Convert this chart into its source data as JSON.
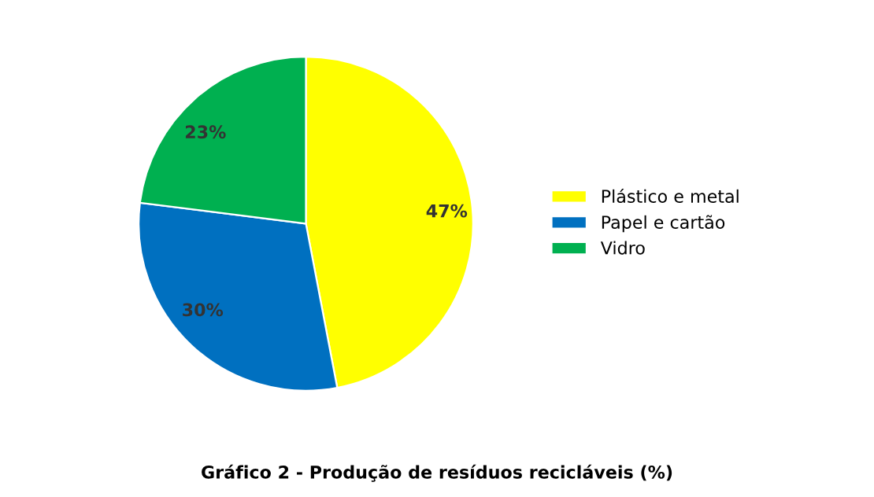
{
  "chart_data": {
    "type": "pie",
    "title": "Gráfico 2 - Produção de resíduos recicláveis (%)",
    "categories": [
      "Plástico e metal",
      "Papel e cartão",
      "Vidro"
    ],
    "values": [
      47,
      30,
      23
    ],
    "colors": [
      "#ffff00",
      "#0070c0",
      "#00b050"
    ],
    "value_labels": [
      "47%",
      "30%",
      "23%"
    ],
    "legend": "right"
  }
}
